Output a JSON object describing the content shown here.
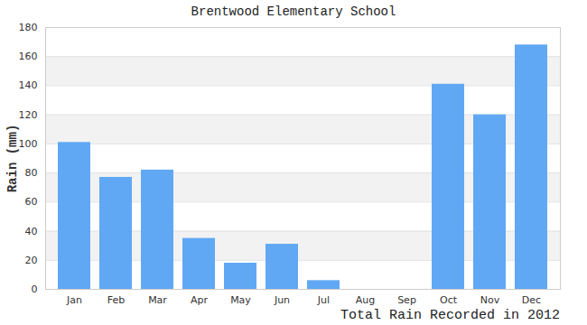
{
  "chart_data": {
    "type": "bar",
    "title": "Brentwood Elementary School",
    "caption": "Total Rain Recorded in 2012",
    "y_label": "Rain (mm)",
    "categories": [
      "Jan",
      "Feb",
      "Mar",
      "Apr",
      "May",
      "Jun",
      "Jul",
      "Aug",
      "Sep",
      "Oct",
      "Nov",
      "Dec"
    ],
    "values": [
      101,
      77,
      82,
      35,
      18,
      31,
      6,
      0,
      0,
      141,
      120,
      168
    ],
    "color": "#60a8f4",
    "ylim": [
      0,
      180
    ],
    "yticks": [
      0,
      20,
      40,
      60,
      80,
      100,
      120,
      140,
      160,
      180
    ],
    "grid": true
  }
}
